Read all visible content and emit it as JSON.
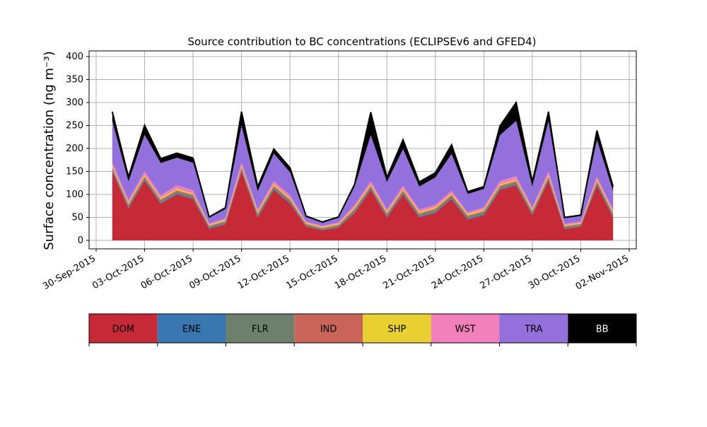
{
  "chart_data": {
    "type": "area",
    "stacked": true,
    "title": "Source contribution to BC concentrations (ECLIPSEv6 and GFED4)",
    "ylabel": "Surface concentration (ng m⁻³)",
    "xlabel": "",
    "ylim": [
      0,
      400
    ],
    "xlim": [
      "2015-09-30",
      "2015-11-02"
    ],
    "grid": true,
    "yticks": [
      0,
      50,
      100,
      150,
      200,
      250,
      300,
      350,
      400
    ],
    "xticks": [
      "2015-09-30",
      "2015-10-03",
      "2015-10-06",
      "2015-10-09",
      "2015-10-12",
      "2015-10-15",
      "2015-10-18",
      "2015-10-21",
      "2015-10-24",
      "2015-10-27",
      "2015-10-30",
      "2015-11-02"
    ],
    "xtick_labels": [
      "30-Sep-2015",
      "03-Oct-2015",
      "06-Oct-2015",
      "09-Oct-2015",
      "12-Oct-2015",
      "15-Oct-2015",
      "18-Oct-2015",
      "21-Oct-2015",
      "24-Oct-2015",
      "27-Oct-2015",
      "30-Oct-2015",
      "02-Nov-2015"
    ],
    "x": [
      "2015-10-01",
      "2015-10-02",
      "2015-10-03",
      "2015-10-04",
      "2015-10-05",
      "2015-10-06",
      "2015-10-07",
      "2015-10-08",
      "2015-10-09",
      "2015-10-10",
      "2015-10-11",
      "2015-10-12",
      "2015-10-13",
      "2015-10-14",
      "2015-10-15",
      "2015-10-16",
      "2015-10-17",
      "2015-10-18",
      "2015-10-19",
      "2015-10-20",
      "2015-10-21",
      "2015-10-22",
      "2015-10-23",
      "2015-10-24",
      "2015-10-25",
      "2015-10-26",
      "2015-10-27",
      "2015-10-28",
      "2015-10-29",
      "2015-10-30",
      "2015-10-31",
      "2015-11-01"
    ],
    "series": [
      {
        "name": "DOM",
        "color": "#c52a36",
        "values": [
          150,
          70,
          130,
          80,
          100,
          90,
          25,
          35,
          150,
          50,
          110,
          80,
          30,
          22,
          28,
          60,
          110,
          50,
          100,
          50,
          60,
          90,
          45,
          55,
          110,
          120,
          55,
          130,
          25,
          30,
          120,
          50
        ]
      },
      {
        "name": "ENE",
        "color": "#3a77b0",
        "values": [
          2,
          2,
          2,
          2,
          2,
          2,
          2,
          2,
          2,
          2,
          2,
          2,
          1,
          1,
          1,
          2,
          2,
          2,
          2,
          2,
          2,
          2,
          2,
          2,
          2,
          2,
          2,
          2,
          1,
          1,
          2,
          2
        ]
      },
      {
        "name": "FLR",
        "color": "#6e7f6e",
        "values": [
          4,
          4,
          4,
          4,
          4,
          4,
          3,
          3,
          4,
          4,
          4,
          4,
          3,
          2,
          3,
          4,
          4,
          4,
          4,
          4,
          4,
          4,
          4,
          4,
          4,
          4,
          4,
          4,
          3,
          3,
          4,
          4
        ]
      },
      {
        "name": "IND",
        "color": "#c96558",
        "values": [
          3,
          3,
          3,
          3,
          3,
          3,
          2,
          2,
          3,
          3,
          3,
          3,
          2,
          2,
          2,
          3,
          3,
          3,
          3,
          3,
          3,
          3,
          3,
          3,
          3,
          3,
          3,
          3,
          2,
          2,
          3,
          3
        ]
      },
      {
        "name": "SHP",
        "color": "#e8cf32",
        "values": [
          3,
          3,
          3,
          3,
          3,
          3,
          2,
          2,
          3,
          3,
          3,
          3,
          2,
          2,
          2,
          3,
          3,
          3,
          3,
          3,
          3,
          3,
          3,
          3,
          3,
          3,
          3,
          3,
          2,
          2,
          3,
          3
        ]
      },
      {
        "name": "WST",
        "color": "#f07fba",
        "values": [
          8,
          6,
          8,
          6,
          8,
          7,
          3,
          4,
          8,
          5,
          7,
          6,
          3,
          3,
          3,
          5,
          7,
          5,
          7,
          5,
          5,
          6,
          4,
          5,
          7,
          8,
          5,
          8,
          3,
          3,
          7,
          5
        ]
      },
      {
        "name": "TRA",
        "color": "#9370db",
        "values": [
          90,
          40,
          80,
          70,
          60,
          60,
          12,
          20,
          80,
          40,
          60,
          50,
          10,
          6,
          10,
          40,
          100,
          60,
          80,
          50,
          60,
          80,
          40,
          40,
          100,
          120,
          45,
          110,
          12,
          12,
          80,
          40
        ]
      },
      {
        "name": "BB",
        "color": "#000000",
        "values": [
          20,
          10,
          20,
          10,
          10,
          10,
          2,
          3,
          30,
          10,
          10,
          10,
          2,
          2,
          2,
          5,
          50,
          10,
          20,
          10,
          10,
          20,
          5,
          5,
          20,
          40,
          10,
          20,
          2,
          2,
          20,
          10
        ]
      }
    ],
    "legend": {
      "placement": "below",
      "entries": [
        "DOM",
        "ENE",
        "FLR",
        "IND",
        "SHP",
        "WST",
        "TRA",
        "BB"
      ]
    }
  }
}
